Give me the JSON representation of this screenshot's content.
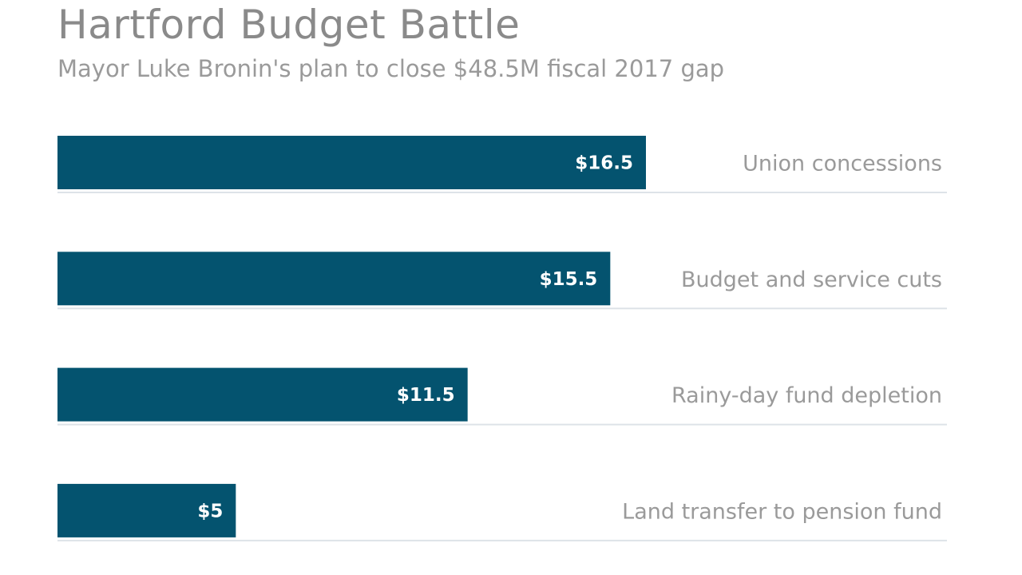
{
  "chart_data": {
    "type": "bar",
    "orientation": "horizontal",
    "title": "Hartford Budget Battle",
    "subtitle": "Mayor Luke Bronin's plan to close $48.5M fiscal 2017 gap",
    "categories": [
      "Union concessions",
      "Budget and service cuts",
      "Rainy-day fund depletion",
      "Land transfer to pension fund"
    ],
    "values": [
      16.5,
      15.5,
      11.5,
      5
    ],
    "value_labels": [
      "$16.5",
      "$15.5",
      "$11.5",
      "$5"
    ],
    "xlim": [
      0,
      25
    ],
    "xlabel": "",
    "ylabel": "",
    "grid": false,
    "legend": "none",
    "colors": {
      "bar": "#04536f",
      "label": "#9a9a9a",
      "baseline": "#dde3e8"
    }
  }
}
